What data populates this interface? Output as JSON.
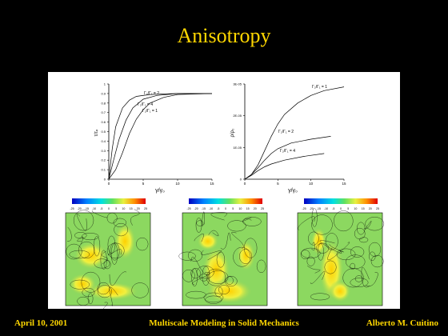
{
  "slide": {
    "title": "Anisotropy",
    "footer_left": "April 10, 2001",
    "footer_center": "Multiscale Modeling in Solid Mechanics",
    "footer_right": "Alberto M. Cuitino",
    "colors": {
      "background": "#000000",
      "accent": "#ffd700",
      "panel": "#ffffff"
    }
  },
  "chart_data": [
    {
      "type": "line",
      "ylabel": "τ/τₚ",
      "xlabel": "γ/γ₀",
      "xlim": [
        0,
        15
      ],
      "ylim": [
        0,
        1
      ],
      "x_ticks": [
        "0",
        "5",
        "10",
        "15"
      ],
      "y_ticks": [
        "0",
        "0.1",
        "0.2",
        "0.3",
        "0.4",
        "0.5",
        "0.6",
        "0.7",
        "0.8",
        "0.9",
        "1"
      ],
      "series": [
        {
          "name": "Γ₂/Γ₁ = 4",
          "points": [
            [
              0,
              0
            ],
            [
              0.5,
              0.32
            ],
            [
              1,
              0.55
            ],
            [
              2,
              0.75
            ],
            [
              3,
              0.83
            ],
            [
              4,
              0.87
            ],
            [
              6,
              0.89
            ],
            [
              10,
              0.9
            ],
            [
              15,
              0.9
            ]
          ]
        },
        {
          "name": "Γ₂/Γ₁ = 2",
          "points": [
            [
              0,
              0
            ],
            [
              0.7,
              0.2
            ],
            [
              1.5,
              0.42
            ],
            [
              2.5,
              0.62
            ],
            [
              3.5,
              0.75
            ],
            [
              5,
              0.84
            ],
            [
              7,
              0.88
            ],
            [
              10,
              0.9
            ],
            [
              15,
              0.9
            ]
          ]
        },
        {
          "name": "Γ₂/Γ₁ = 1",
          "points": [
            [
              0,
              0
            ],
            [
              1,
              0.1
            ],
            [
              2,
              0.28
            ],
            [
              3,
              0.48
            ],
            [
              4,
              0.63
            ],
            [
              5,
              0.73
            ],
            [
              6,
              0.8
            ],
            [
              8,
              0.86
            ],
            [
              10,
              0.89
            ],
            [
              15,
              0.9
            ]
          ]
        }
      ]
    },
    {
      "type": "line",
      "ylabel": "ρ/ρ₀",
      "xlabel": "γ/γ₀",
      "xlim": [
        0,
        15
      ],
      "ylim": [
        0,
        1
      ],
      "x_ticks": [
        "0",
        "5",
        "10",
        "15"
      ],
      "y_ticks": [
        "0",
        "1E-05",
        "2E-05",
        "3E-05"
      ],
      "series": [
        {
          "name": "Γ₂/Γ₁ = 1",
          "points": [
            [
              0,
              0
            ],
            [
              1,
              0.05
            ],
            [
              2,
              0.15
            ],
            [
              3,
              0.3
            ],
            [
              4,
              0.45
            ],
            [
              5,
              0.58
            ],
            [
              6,
              0.68
            ],
            [
              8,
              0.8
            ],
            [
              10,
              0.88
            ],
            [
              12,
              0.93
            ],
            [
              15,
              0.97
            ]
          ]
        },
        {
          "name": "Γ₂/Γ₁ = 2",
          "points": [
            [
              0,
              0
            ],
            [
              1,
              0.05
            ],
            [
              2,
              0.12
            ],
            [
              3,
              0.2
            ],
            [
              4,
              0.27
            ],
            [
              5,
              0.32
            ],
            [
              7,
              0.38
            ],
            [
              10,
              0.42
            ],
            [
              13,
              0.45
            ]
          ]
        },
        {
          "name": "Γ₂/Γ₁ = 4",
          "points": [
            [
              0,
              0
            ],
            [
              1,
              0.04
            ],
            [
              2,
              0.09
            ],
            [
              3,
              0.13
            ],
            [
              4,
              0.16
            ],
            [
              6,
              0.2
            ],
            [
              9,
              0.24
            ],
            [
              12,
              0.27
            ]
          ]
        }
      ]
    }
  ],
  "colorbars": [
    {
      "ticks": [
        "-25",
        "-20",
        "-15",
        "-10",
        "-5",
        "0",
        "5",
        "10",
        "15",
        "20",
        "25"
      ]
    },
    {
      "ticks": [
        "-25",
        "-20",
        "-15",
        "-10",
        "-5",
        "0",
        "5",
        "10",
        "15",
        "20",
        "25"
      ]
    },
    {
      "ticks": [
        "-25",
        "-20",
        "-15",
        "-10",
        "-5",
        "0",
        "5",
        "10",
        "15",
        "20",
        "25"
      ]
    }
  ]
}
